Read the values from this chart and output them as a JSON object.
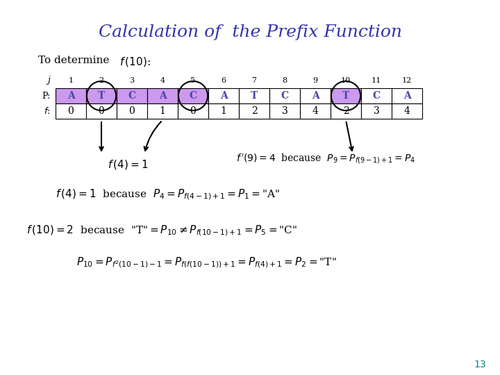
{
  "title": "Calculation of  the Prefix Function",
  "title_color": "#3333aa",
  "title_fontsize": 18,
  "bg_color": "#ffffff",
  "page_num": "13",
  "page_num_color": "#008888",
  "j_values": [
    "1",
    "2",
    "3",
    "4",
    "5",
    "6",
    "7",
    "8",
    "9",
    "10",
    "11",
    "12"
  ],
  "P_values": [
    "A",
    "T",
    "C",
    "A",
    "C",
    "A",
    "T",
    "C",
    "A",
    "T",
    "C",
    "A"
  ],
  "f_values": [
    "0",
    "0",
    "0",
    "1",
    "0",
    "1",
    "2",
    "3",
    "4",
    "2",
    "3",
    "4"
  ],
  "highlight_P_indices": [
    0,
    1,
    2,
    3,
    4,
    9
  ],
  "circle_P_indices": [
    1,
    4,
    9
  ],
  "highlight_color": "#cc99ee"
}
